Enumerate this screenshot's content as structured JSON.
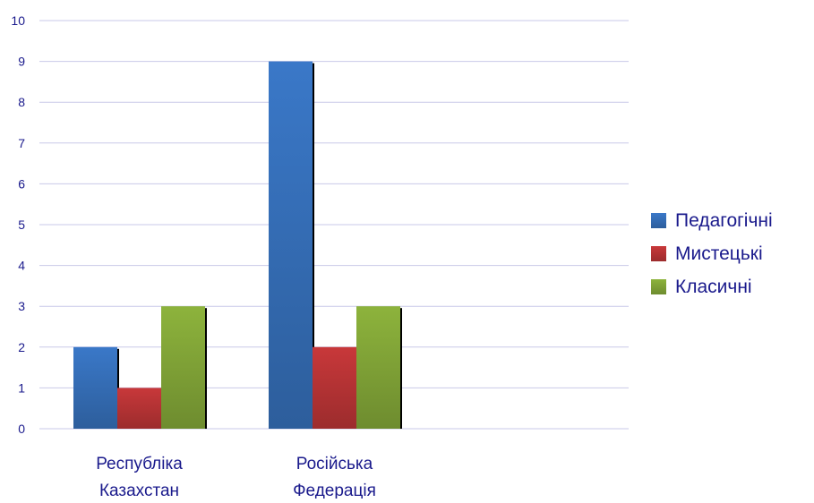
{
  "chart_data": {
    "type": "bar",
    "categories": [
      [
        "Республіка",
        "Казахстан"
      ],
      [
        "Російська",
        "Федерація"
      ]
    ],
    "series": [
      {
        "name": "Педагогічні",
        "values": [
          2,
          9
        ],
        "color": "#3a78c8"
      },
      {
        "name": "Мистецькі",
        "values": [
          1,
          2
        ],
        "color": "#c8383a"
      },
      {
        "name": "Класичні",
        "values": [
          3,
          3
        ],
        "color": "#8db33c"
      }
    ],
    "y_ticks": [
      "0",
      "1",
      "2",
      "3",
      "4",
      "5",
      "6",
      "7",
      "8",
      "9",
      "10"
    ],
    "ylim": [
      0,
      10
    ],
    "grid": true,
    "legend_position": "right",
    "title": "",
    "xlabel": "",
    "ylabel": "",
    "text_color": "#1a1a8c",
    "grid_color": "#c9c9e8"
  }
}
